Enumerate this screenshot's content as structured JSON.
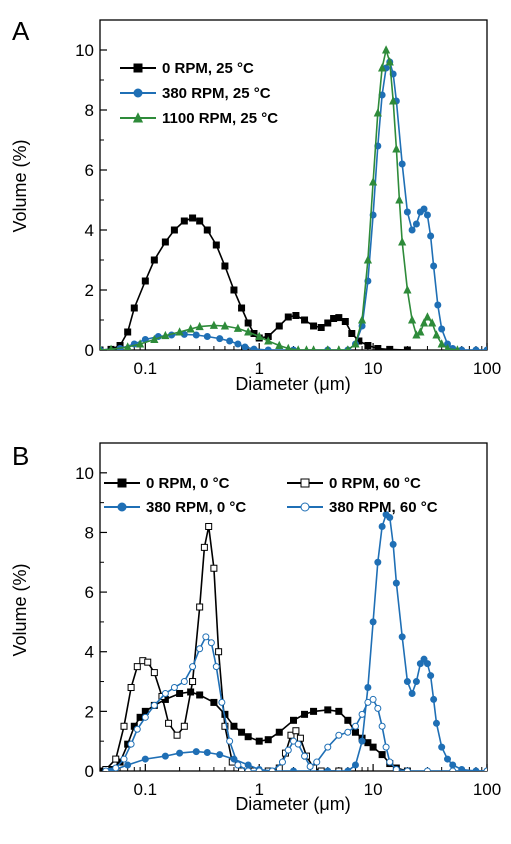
{
  "chart_data": [
    {
      "panel": "A",
      "type": "line",
      "xlabel": "Diameter (μm)",
      "ylabel": "Volume (%)",
      "xscale": "log",
      "xlim": [
        0.04,
        100
      ],
      "ylim": [
        0,
        11
      ],
      "xticks": [
        0.1,
        1,
        10,
        100
      ],
      "xtick_labels": [
        "0.1",
        "1",
        "10",
        "100"
      ],
      "yticks": [
        0,
        2,
        4,
        6,
        8,
        10
      ],
      "ytick_labels": [
        "0",
        "2",
        "4",
        "6",
        "8",
        "10"
      ],
      "legend_position": "top-left",
      "series": [
        {
          "name": "0 RPM, 25 °C",
          "color": "#000000",
          "marker": "square",
          "filled": true,
          "x": [
            0.04,
            0.05,
            0.06,
            0.07,
            0.08,
            0.1,
            0.12,
            0.15,
            0.18,
            0.22,
            0.26,
            0.3,
            0.35,
            0.42,
            0.5,
            0.6,
            0.7,
            0.8,
            0.9,
            1.0,
            1.2,
            1.5,
            1.8,
            2.1,
            2.5,
            3.0,
            3.5,
            4.0,
            4.5,
            5.0,
            5.7,
            6.5,
            7.5,
            9.0,
            11,
            14,
            20
          ],
          "y": [
            0.0,
            0.02,
            0.15,
            0.6,
            1.4,
            2.3,
            3.0,
            3.6,
            4.0,
            4.3,
            4.4,
            4.3,
            4.0,
            3.5,
            2.8,
            2.0,
            1.4,
            0.9,
            0.55,
            0.4,
            0.45,
            0.8,
            1.1,
            1.15,
            1.0,
            0.8,
            0.75,
            0.9,
            1.05,
            1.08,
            0.95,
            0.55,
            0.3,
            0.15,
            0.05,
            0.02,
            0.0
          ]
        },
        {
          "name": "380 RPM, 25 °C",
          "color": "#1f6fb5",
          "marker": "circle",
          "filled": true,
          "x": [
            0.04,
            0.06,
            0.08,
            0.1,
            0.13,
            0.17,
            0.22,
            0.28,
            0.35,
            0.45,
            0.55,
            0.65,
            0.75,
            0.9,
            1.2,
            2.0,
            4.0,
            6.0,
            7.0,
            8.0,
            9.0,
            10,
            11,
            12,
            13,
            14,
            15,
            16,
            18,
            20,
            22,
            24,
            26,
            28,
            30,
            32,
            34,
            37,
            40,
            45,
            50,
            60,
            80,
            100
          ],
          "y": [
            0,
            0.05,
            0.2,
            0.35,
            0.45,
            0.5,
            0.52,
            0.5,
            0.45,
            0.38,
            0.3,
            0.2,
            0.1,
            0.03,
            0.0,
            0.0,
            0.0,
            0.0,
            0.2,
            0.8,
            2.3,
            4.5,
            6.8,
            8.5,
            9.4,
            9.6,
            9.2,
            8.3,
            6.2,
            4.6,
            4.0,
            4.2,
            4.6,
            4.7,
            4.5,
            3.8,
            2.8,
            1.5,
            0.7,
            0.2,
            0.05,
            0.0,
            0.0,
            0.0
          ]
        },
        {
          "name": "1100 RPM, 25 °C",
          "color": "#2e8b3a",
          "marker": "triangle",
          "filled": true,
          "x": [
            0.04,
            0.05,
            0.07,
            0.09,
            0.12,
            0.15,
            0.2,
            0.25,
            0.3,
            0.4,
            0.5,
            0.65,
            0.8,
            1.0,
            1.2,
            1.5,
            1.8,
            2.2,
            2.6,
            3.0,
            4.0,
            5.0,
            6.0,
            7.0,
            8.0,
            9.0,
            10,
            11,
            12,
            13,
            14,
            15,
            16,
            17,
            18,
            20,
            22,
            24,
            26,
            28,
            30,
            33,
            36,
            40,
            45,
            55
          ],
          "y": [
            0.0,
            0.02,
            0.1,
            0.2,
            0.35,
            0.48,
            0.6,
            0.7,
            0.78,
            0.82,
            0.8,
            0.72,
            0.6,
            0.45,
            0.3,
            0.15,
            0.05,
            0.0,
            0.0,
            0.0,
            0.0,
            0.0,
            0.0,
            0.2,
            1.0,
            3.0,
            5.6,
            7.9,
            9.4,
            10.0,
            9.6,
            8.3,
            6.7,
            5.0,
            3.6,
            2.0,
            1.0,
            0.5,
            0.6,
            0.9,
            1.1,
            0.9,
            0.5,
            0.2,
            0.05,
            0.0
          ]
        }
      ]
    },
    {
      "panel": "B",
      "type": "line",
      "xlabel": "Diameter (μm)",
      "ylabel": "Volume (%)",
      "xscale": "log",
      "xlim": [
        0.04,
        100
      ],
      "ylim": [
        0,
        11
      ],
      "xticks": [
        0.1,
        1,
        10,
        100
      ],
      "xtick_labels": [
        "0.1",
        "1",
        "10",
        "100"
      ],
      "yticks": [
        0,
        2,
        4,
        6,
        8,
        10
      ],
      "ytick_labels": [
        "0",
        "2",
        "4",
        "6",
        "8",
        "10"
      ],
      "legend_position": "top",
      "series": [
        {
          "name": "0 RPM, 0 °C",
          "color": "#000000",
          "marker": "square",
          "filled": true,
          "x": [
            0.04,
            0.05,
            0.06,
            0.07,
            0.08,
            0.09,
            0.1,
            0.12,
            0.15,
            0.2,
            0.25,
            0.3,
            0.4,
            0.5,
            0.6,
            0.7,
            0.8,
            1.0,
            1.2,
            1.5,
            2.0,
            2.5,
            3.0,
            4.0,
            5.0,
            6.0,
            7.0,
            8.0,
            9.0,
            10,
            12,
            14,
            16,
            20
          ],
          "y": [
            0.0,
            0.05,
            0.3,
            0.9,
            1.5,
            1.8,
            2.0,
            2.2,
            2.4,
            2.6,
            2.65,
            2.55,
            2.3,
            1.9,
            1.5,
            1.3,
            1.15,
            1.0,
            1.05,
            1.3,
            1.7,
            1.9,
            2.0,
            2.05,
            2.0,
            1.7,
            1.3,
            1.1,
            0.95,
            0.8,
            0.55,
            0.25,
            0.1,
            0.0
          ]
        },
        {
          "name": "0 RPM, 60 °C",
          "color": "#000000",
          "marker": "square",
          "filled": false,
          "x": [
            0.045,
            0.055,
            0.065,
            0.075,
            0.085,
            0.095,
            0.105,
            0.12,
            0.14,
            0.16,
            0.19,
            0.22,
            0.26,
            0.3,
            0.33,
            0.36,
            0.4,
            0.44,
            0.5,
            0.58,
            0.7,
            0.9,
            1.2,
            1.5,
            1.7,
            1.9,
            2.1,
            2.3,
            2.6,
            3.0,
            3.5,
            5.0
          ],
          "y": [
            0.05,
            0.4,
            1.5,
            2.8,
            3.5,
            3.7,
            3.65,
            3.3,
            2.5,
            1.6,
            1.2,
            1.5,
            3.0,
            5.5,
            7.5,
            8.2,
            6.8,
            4.0,
            1.5,
            0.3,
            0.0,
            0.0,
            0.0,
            0.1,
            0.6,
            1.2,
            1.35,
            1.1,
            0.5,
            0.1,
            0.0,
            0.0
          ]
        },
        {
          "name": "380 RPM, 0 °C",
          "color": "#1f6fb5",
          "marker": "circle",
          "filled": true,
          "x": [
            0.05,
            0.07,
            0.1,
            0.15,
            0.2,
            0.28,
            0.35,
            0.45,
            0.6,
            0.8,
            1.0,
            1.3,
            2.0,
            4.0,
            6.0,
            7.0,
            8.0,
            9.0,
            10,
            11,
            12,
            13,
            14,
            15,
            16,
            18,
            20,
            22,
            24,
            26,
            28,
            30,
            32,
            34,
            36,
            40,
            45,
            50,
            60,
            80,
            100
          ],
          "y": [
            0.0,
            0.2,
            0.4,
            0.5,
            0.6,
            0.65,
            0.62,
            0.55,
            0.4,
            0.2,
            0.05,
            0.0,
            0.0,
            0.0,
            0.0,
            0.2,
            1.0,
            2.8,
            5.0,
            7.0,
            8.2,
            8.6,
            8.5,
            7.6,
            6.3,
            4.5,
            3.0,
            2.6,
            3.0,
            3.6,
            3.75,
            3.6,
            3.2,
            2.4,
            1.6,
            0.8,
            0.4,
            0.2,
            0.05,
            0.0,
            0.0
          ]
        },
        {
          "name": "380 RPM, 60 °C",
          "color": "#1f6fb5",
          "marker": "circle",
          "filled": false,
          "x": [
            0.045,
            0.055,
            0.065,
            0.075,
            0.085,
            0.1,
            0.12,
            0.15,
            0.18,
            0.22,
            0.26,
            0.3,
            0.34,
            0.38,
            0.42,
            0.47,
            0.55,
            0.65,
            0.8,
            1.0,
            1.3,
            1.6,
            1.8,
            2.0,
            2.2,
            2.5,
            2.8,
            3.2,
            4.0,
            5.0,
            6.0,
            7.0,
            8.0,
            9.0,
            10,
            11,
            12,
            13,
            14,
            16,
            20,
            30,
            50,
            100
          ],
          "y": [
            0.0,
            0.1,
            0.4,
            0.9,
            1.4,
            1.8,
            2.2,
            2.6,
            2.8,
            3.0,
            3.5,
            4.1,
            4.5,
            4.3,
            3.5,
            2.3,
            1.0,
            0.2,
            0.0,
            0.0,
            0.0,
            0.3,
            0.7,
            1.0,
            0.9,
            0.5,
            0.15,
            0.3,
            0.8,
            1.2,
            1.3,
            1.5,
            1.9,
            2.3,
            2.4,
            2.1,
            1.5,
            0.8,
            0.3,
            0.05,
            0.0,
            0.0,
            0.0,
            0.0
          ]
        }
      ]
    }
  ]
}
